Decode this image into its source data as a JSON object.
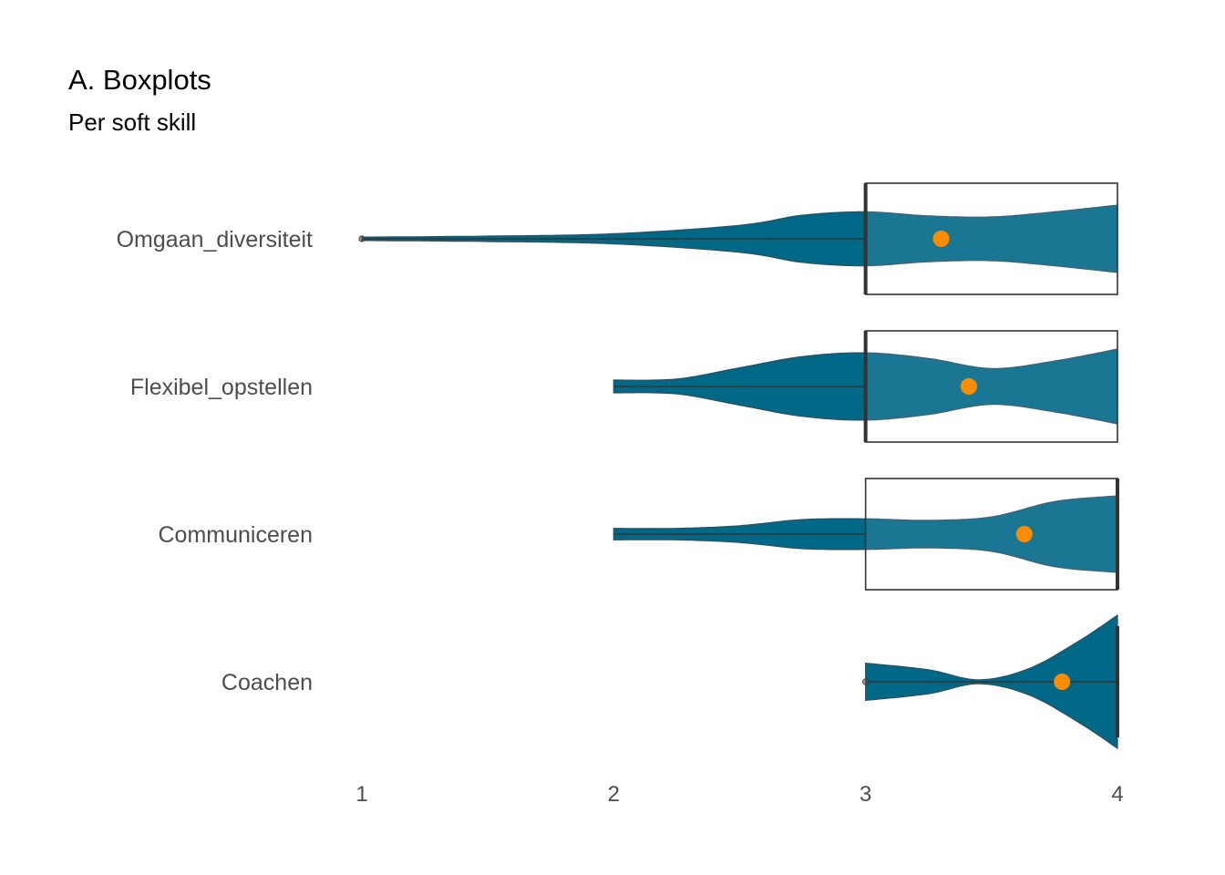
{
  "chart_data": {
    "type": "violin",
    "title": "A. Boxplots",
    "subtitle": "Per soft skill",
    "xlabel": "",
    "ylabel": "",
    "xlim": [
      1,
      4
    ],
    "x_ticks": [
      "1",
      "2",
      "3",
      "4"
    ],
    "x_tick_values": [
      1,
      2,
      3,
      4
    ],
    "grid": false,
    "legend": "none",
    "colors": {
      "violin_dark": "#006887",
      "violin_light": "#1c7a99",
      "mean_point": "#ff8c00",
      "box_stroke": "#333333"
    },
    "categories": [
      "Omgaan_diversiteit",
      "Flexibel_opstellen",
      "Communiceren",
      "Coachen"
    ],
    "series": [
      {
        "category": "Omgaan_diversiteit",
        "min": 1,
        "q1": 3,
        "median": 3,
        "q3": 4,
        "max": 4,
        "mean": 3.3,
        "outliers": [
          1
        ],
        "density": [
          [
            1.0,
            0.05
          ],
          [
            1.5,
            0.08
          ],
          [
            2.0,
            0.15
          ],
          [
            2.5,
            0.4
          ],
          [
            2.75,
            0.7
          ],
          [
            3.0,
            0.8
          ],
          [
            3.25,
            0.68
          ],
          [
            3.5,
            0.65
          ],
          [
            3.75,
            0.8
          ],
          [
            4.0,
            1.0
          ]
        ]
      },
      {
        "category": "Flexibel_opstellen",
        "min": 2,
        "q1": 3,
        "median": 3,
        "q3": 4,
        "max": 4,
        "mean": 3.41,
        "outliers": [],
        "density": [
          [
            2.0,
            0.17
          ],
          [
            2.25,
            0.2
          ],
          [
            2.5,
            0.5
          ],
          [
            2.75,
            0.8
          ],
          [
            3.0,
            0.9
          ],
          [
            3.25,
            0.75
          ],
          [
            3.5,
            0.48
          ],
          [
            3.75,
            0.68
          ],
          [
            4.0,
            1.0
          ]
        ]
      },
      {
        "category": "Communiceren",
        "min": 2,
        "q1": 3,
        "median": 4,
        "q3": 4,
        "max": 4,
        "mean": 3.63,
        "outliers": [],
        "density": [
          [
            2.0,
            0.15
          ],
          [
            2.25,
            0.15
          ],
          [
            2.5,
            0.22
          ],
          [
            2.75,
            0.38
          ],
          [
            3.0,
            0.4
          ],
          [
            3.25,
            0.36
          ],
          [
            3.5,
            0.45
          ],
          [
            3.75,
            0.85
          ],
          [
            4.0,
            1.0
          ]
        ]
      },
      {
        "category": "Coachen",
        "min": 3,
        "q1": 4,
        "median": 4,
        "q3": 4,
        "max": 4,
        "mean": 3.78,
        "outliers": [
          3
        ],
        "density": [
          [
            3.0,
            0.28
          ],
          [
            3.25,
            0.18
          ],
          [
            3.45,
            0.03
          ],
          [
            3.65,
            0.2
          ],
          [
            3.85,
            0.62
          ],
          [
            4.0,
            1.0
          ]
        ]
      }
    ]
  }
}
